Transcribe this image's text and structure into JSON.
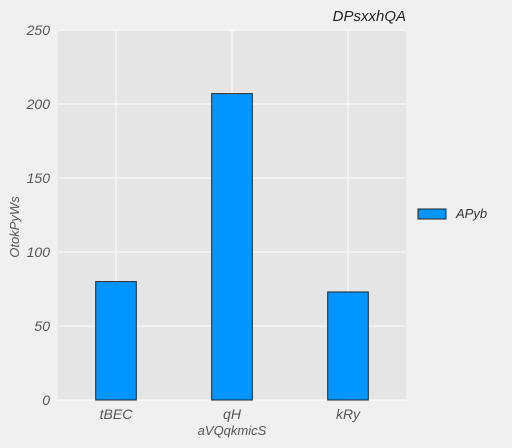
{
  "chart_data": {
    "type": "bar",
    "title": "DPsxxhQA",
    "xlabel": "aVQqkmicS",
    "ylabel": "OtokPyWs",
    "categories": [
      "tBEC",
      "qH",
      "kRy"
    ],
    "series": [
      {
        "name": "APyb",
        "values": [
          80,
          207,
          73
        ],
        "color": "#0095ff"
      }
    ],
    "ylim": [
      0,
      250
    ],
    "yticks": [
      0,
      50,
      100,
      150,
      200,
      250
    ],
    "grid": true,
    "legend": "right",
    "colors": {
      "plot_bg": "#e5e5e5",
      "page_bg": "#f0f0f0",
      "grid": "#ffffff",
      "bar_edge": "#222222"
    }
  }
}
